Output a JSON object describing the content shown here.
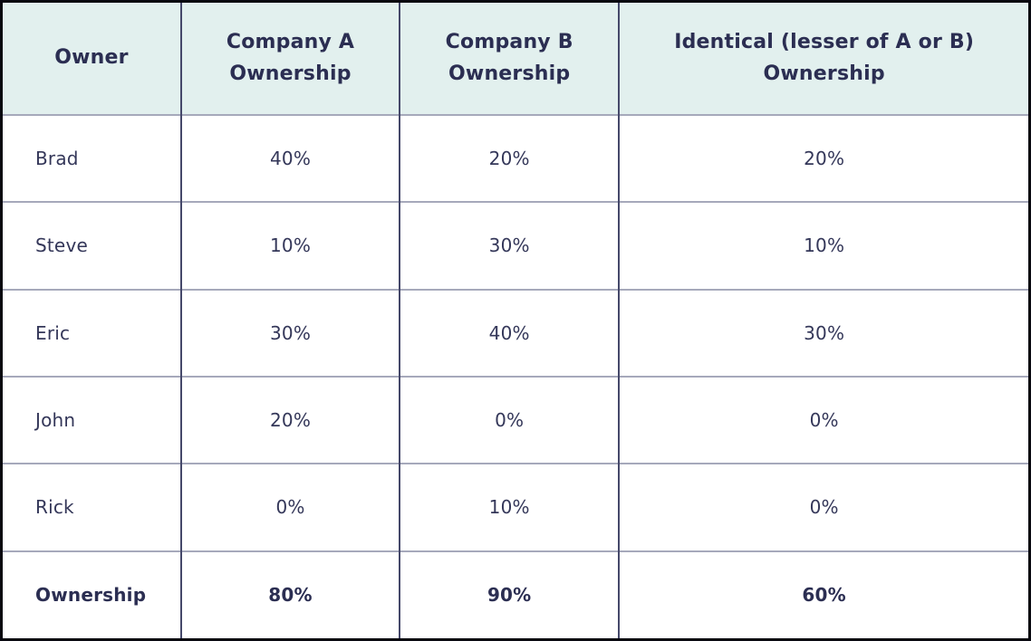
{
  "table": {
    "headers": [
      {
        "id": "owner",
        "lines": [
          "Owner"
        ]
      },
      {
        "id": "company_a",
        "lines": [
          "Company A",
          "Ownership"
        ]
      },
      {
        "id": "company_b",
        "lines": [
          "Company B",
          "Ownership"
        ]
      },
      {
        "id": "identical",
        "lines": [
          "Identical (lesser of A or B)",
          "Ownership"
        ]
      }
    ],
    "rows": [
      {
        "owner": "Brad",
        "company_a": "40%",
        "company_b": "20%",
        "identical": "20%"
      },
      {
        "owner": "Steve",
        "company_a": "10%",
        "company_b": "30%",
        "identical": "10%"
      },
      {
        "owner": "Eric",
        "company_a": "30%",
        "company_b": "40%",
        "identical": "30%"
      },
      {
        "owner": "John",
        "company_a": "20%",
        "company_b": "0%",
        "identical": "0%"
      },
      {
        "owner": "Rick",
        "company_a": "0%",
        "company_b": "10%",
        "identical": "0%"
      }
    ],
    "total_row": {
      "owner": "Ownership",
      "company_a": "80%",
      "company_b": "90%",
      "identical": "60%"
    }
  },
  "colors": {
    "header_background": "#e2f0ee",
    "header_text": "#2b2e52",
    "body_text": "#343759",
    "vertical_border": "#45486a",
    "horizontal_border": "#a6a9bb",
    "outer_frame": "#07070f",
    "row_background": "#ffffff"
  },
  "chart_data": {
    "type": "table",
    "title": "Identical ownership comparison between Company A and Company B",
    "columns": [
      "Owner",
      "Company A Ownership",
      "Company B Ownership",
      "Identical (lesser of A or B) Ownership"
    ],
    "rows": [
      [
        "Brad",
        "40%",
        "20%",
        "20%"
      ],
      [
        "Steve",
        "10%",
        "30%",
        "10%"
      ],
      [
        "Eric",
        "30%",
        "40%",
        "30%"
      ],
      [
        "John",
        "20%",
        "0%",
        "0%"
      ],
      [
        "Rick",
        "0%",
        "10%",
        "0%"
      ]
    ],
    "totals_row": [
      "Ownership",
      "80%",
      "90%",
      "60%"
    ],
    "layout_hints": {
      "header_fill": "#e2f0ee",
      "totals_bold": true,
      "grid": "on"
    }
  }
}
